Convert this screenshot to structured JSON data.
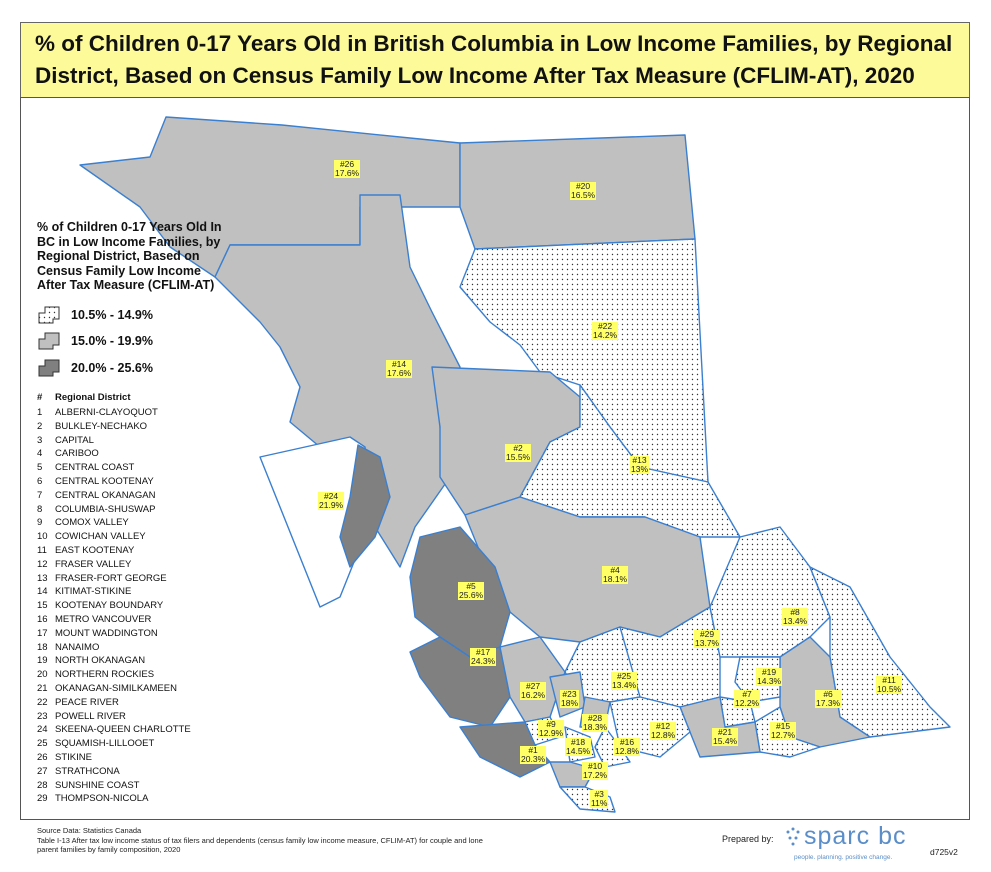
{
  "title": {
    "line1": "% of Children 0-17 Years Old in British Columbia in Low Income Families, by Regional",
    "line2": "District, Based on Census Family Low Income After Tax Measure (CFLIM-AT), 2020"
  },
  "colors": {
    "low": "#ffffff",
    "mid": "#c0c0c0",
    "high": "#808080",
    "boundary": "#3a7fd0",
    "label_bg": "#ffff66",
    "title_bg": "#fdfa9a"
  },
  "legend": {
    "title_lines": [
      "% of Children 0-17 Years Old In",
      "BC in Low Income Families, by",
      "Regional District, Based on",
      "Census Family Low Income",
      "After Tax Measure (CFLIM-AT)"
    ],
    "classes": [
      {
        "label": "10.5% - 14.9%",
        "color": "#ffffff",
        "pattern": "dots"
      },
      {
        "label": "15.0% - 19.9%",
        "color": "#c0c0c0",
        "pattern": "solid"
      },
      {
        "label": "20.0% - 25.6%",
        "color": "#808080",
        "pattern": "solid"
      }
    ]
  },
  "district_list": {
    "header_num": "#",
    "header_name": "Regional District",
    "items": [
      {
        "n": "1",
        "name": "ALBERNI-CLAYOQUOT"
      },
      {
        "n": "2",
        "name": "BULKLEY-NECHAKO"
      },
      {
        "n": "3",
        "name": "CAPITAL"
      },
      {
        "n": "4",
        "name": "CARIBOO"
      },
      {
        "n": "5",
        "name": "CENTRAL COAST"
      },
      {
        "n": "6",
        "name": "CENTRAL KOOTENAY"
      },
      {
        "n": "7",
        "name": "CENTRAL OKANAGAN"
      },
      {
        "n": "8",
        "name": "COLUMBIA-SHUSWAP"
      },
      {
        "n": "9",
        "name": "COMOX VALLEY"
      },
      {
        "n": "10",
        "name": "COWICHAN VALLEY"
      },
      {
        "n": "11",
        "name": "EAST KOOTENAY"
      },
      {
        "n": "12",
        "name": "FRASER VALLEY"
      },
      {
        "n": "13",
        "name": "FRASER-FORT GEORGE"
      },
      {
        "n": "14",
        "name": "KITIMAT-STIKINE"
      },
      {
        "n": "15",
        "name": "KOOTENAY BOUNDARY"
      },
      {
        "n": "16",
        "name": "METRO VANCOUVER"
      },
      {
        "n": "17",
        "name": "MOUNT WADDINGTON"
      },
      {
        "n": "18",
        "name": "NANAIMO"
      },
      {
        "n": "19",
        "name": "NORTH OKANAGAN"
      },
      {
        "n": "20",
        "name": "NORTHERN ROCKIES"
      },
      {
        "n": "21",
        "name": "OKANAGAN-SIMILKAMEEN"
      },
      {
        "n": "22",
        "name": "PEACE RIVER"
      },
      {
        "n": "23",
        "name": "POWELL RIVER"
      },
      {
        "n": "24",
        "name": "SKEENA-QUEEN CHARLOTTE"
      },
      {
        "n": "25",
        "name": "SQUAMISH-LILLOOET"
      },
      {
        "n": "26",
        "name": "STIKINE"
      },
      {
        "n": "27",
        "name": "STRATHCONA"
      },
      {
        "n": "28",
        "name": "SUNSHINE COAST"
      },
      {
        "n": "29",
        "name": "THOMPSON-NICOLA"
      }
    ]
  },
  "districts": [
    {
      "num": "#1",
      "value": "20.3%",
      "class": "high"
    },
    {
      "num": "#2",
      "value": "15.5%",
      "class": "mid"
    },
    {
      "num": "#3",
      "value": "11%",
      "class": "low"
    },
    {
      "num": "#4",
      "value": "18.1%",
      "class": "mid"
    },
    {
      "num": "#5",
      "value": "25.6%",
      "class": "high"
    },
    {
      "num": "#6",
      "value": "17.3%",
      "class": "mid"
    },
    {
      "num": "#7",
      "value": "12.2%",
      "class": "low"
    },
    {
      "num": "#8",
      "value": "13.4%",
      "class": "low"
    },
    {
      "num": "#9",
      "value": "12.9%",
      "class": "low"
    },
    {
      "num": "#10",
      "value": "17.2%",
      "class": "mid"
    },
    {
      "num": "#11",
      "value": "10.5%",
      "class": "low"
    },
    {
      "num": "#12",
      "value": "12.8%",
      "class": "low"
    },
    {
      "num": "#13",
      "value": "13%",
      "class": "low"
    },
    {
      "num": "#14",
      "value": "17.6%",
      "class": "mid"
    },
    {
      "num": "#15",
      "value": "12.7%",
      "class": "low"
    },
    {
      "num": "#16",
      "value": "12.8%",
      "class": "low"
    },
    {
      "num": "#17",
      "value": "24.3%",
      "class": "high"
    },
    {
      "num": "#18",
      "value": "14.5%",
      "class": "low"
    },
    {
      "num": "#19",
      "value": "14.3%",
      "class": "low"
    },
    {
      "num": "#20",
      "value": "16.5%",
      "class": "mid"
    },
    {
      "num": "#21",
      "value": "15.4%",
      "class": "mid"
    },
    {
      "num": "#22",
      "value": "14.2%",
      "class": "low"
    },
    {
      "num": "#23",
      "value": "18%",
      "class": "mid"
    },
    {
      "num": "#24",
      "value": "21.9%",
      "class": "high"
    },
    {
      "num": "#25",
      "value": "13.4%",
      "class": "low"
    },
    {
      "num": "#26",
      "value": "17.6%",
      "class": "mid"
    },
    {
      "num": "#27",
      "value": "16.2%",
      "class": "mid"
    },
    {
      "num": "#28",
      "value": "18.3%",
      "class": "mid"
    },
    {
      "num": "#29",
      "value": "13.7%",
      "class": "low"
    }
  ],
  "source": {
    "line1": "Source Data: Statistics Canada",
    "line2": "Table I-13 After tax low income status of tax filers and dependents (census family low income measure, CFLIM-AT) for couple and lone",
    "line3": "parent families by family composition, 2020"
  },
  "prepared_by": "Prepared by:",
  "logo": {
    "text": "sparc bc",
    "tagline": "people. planning. positive change."
  },
  "doc_code": "d725v2"
}
